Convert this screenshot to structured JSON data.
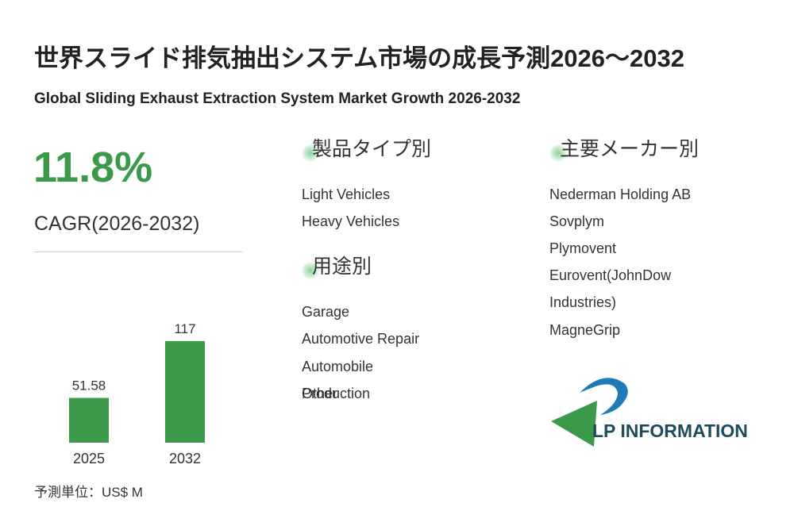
{
  "header": {
    "title": "世界スライド排気抽出システム市場の成長予測2026～2032",
    "subtitle": "Global Sliding Exhaust Extraction System Market Growth 2026-2032"
  },
  "cagr": {
    "value": "11.8%",
    "label": "CAGR(2026-2032)"
  },
  "chart_data": {
    "type": "bar",
    "categories": [
      "2025",
      "2032"
    ],
    "values": [
      51.58,
      117
    ],
    "color": "#3a9a4a",
    "unit": "予測単位：US$ M"
  },
  "segments": [
    {
      "title": "製品タイプ別",
      "items": [
        "Light Vehicles",
        "Heavy Vehicles"
      ]
    },
    {
      "title": "用途別",
      "items": [
        "Garage",
        "Automotive Repair",
        "Automobile Production",
        "Other"
      ]
    },
    {
      "title": "主要メーカー別",
      "items": [
        "Nederman Holding AB",
        "Sovplym",
        "Plymovent",
        "Eurovent(JohnDow Industries)",
        "MagneGrip"
      ]
    }
  ],
  "logo": "LP INFORMATION"
}
